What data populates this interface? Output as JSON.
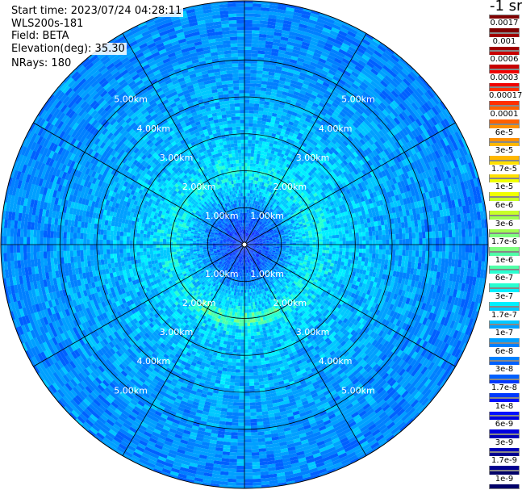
{
  "header": {
    "start_time": "Start time: 2023/07/24 04:28:11",
    "instrument": "WLS200s-181",
    "field": "Field: BETA",
    "elevation": "Elevation(deg): 35.30",
    "nrays": "NRays: 180"
  },
  "colorbar": {
    "unit": "-1 sr",
    "labels": [
      "0.0017",
      "0.001",
      "0.0006",
      "0.0003",
      "0.00017",
      "0.0001",
      "6e-5",
      "3e-5",
      "1.7e-5",
      "1e-5",
      "6e-6",
      "3e-6",
      "1.7e-6",
      "1e-6",
      "6e-7",
      "3e-7",
      "1.7e-7",
      "1e-7",
      "6e-8",
      "3e-8",
      "1.7e-8",
      "1e-8",
      "6e-9",
      "3e-9",
      "1.7e-9",
      "1e-9"
    ],
    "colors": [
      "#7f0000",
      "#a00000",
      "#c80000",
      "#f00000",
      "#ff3000",
      "#ff6000",
      "#ff9000",
      "#ffb800",
      "#ffe000",
      "#f0ff00",
      "#c8ff28",
      "#a0ff50",
      "#80ff80",
      "#50ffa8",
      "#28ffd0",
      "#00f0ff",
      "#00c8ff",
      "#00a0ff",
      "#0080ff",
      "#0060ff",
      "#0038ff",
      "#0010ff",
      "#0000e0",
      "#0000b8",
      "#000090",
      "#000068"
    ]
  },
  "chart_data": {
    "type": "heatmap",
    "projection": "polar (PPI)",
    "range_unit": "km",
    "range_rings": [
      1.0,
      2.0,
      3.0,
      4.0,
      5.0
    ],
    "ring_labels": [
      "1.00km",
      "2.00km",
      "3.00km",
      "4.00km",
      "5.00km"
    ],
    "max_range_km": 6.6,
    "azimuth_spokes_deg": [
      0,
      30,
      60,
      90,
      120,
      150,
      180,
      210,
      240,
      270,
      300,
      330
    ],
    "nrays": 180,
    "field": "BETA",
    "colorscale": "log, 1e-9 to 0.0017",
    "typical_beta_by_range_km": [
      {
        "range": 0.3,
        "beta": 1.7e-08
      },
      {
        "range": 0.7,
        "beta": 3e-08
      },
      {
        "range": 1.5,
        "beta": 1.7e-07
      },
      {
        "range": 2.0,
        "beta": 3e-07
      },
      {
        "range": 2.5,
        "beta": 1.7e-07
      },
      {
        "range": 4.0,
        "beta": 1e-07
      },
      {
        "range": 6.0,
        "beta": 6e-08
      }
    ]
  }
}
